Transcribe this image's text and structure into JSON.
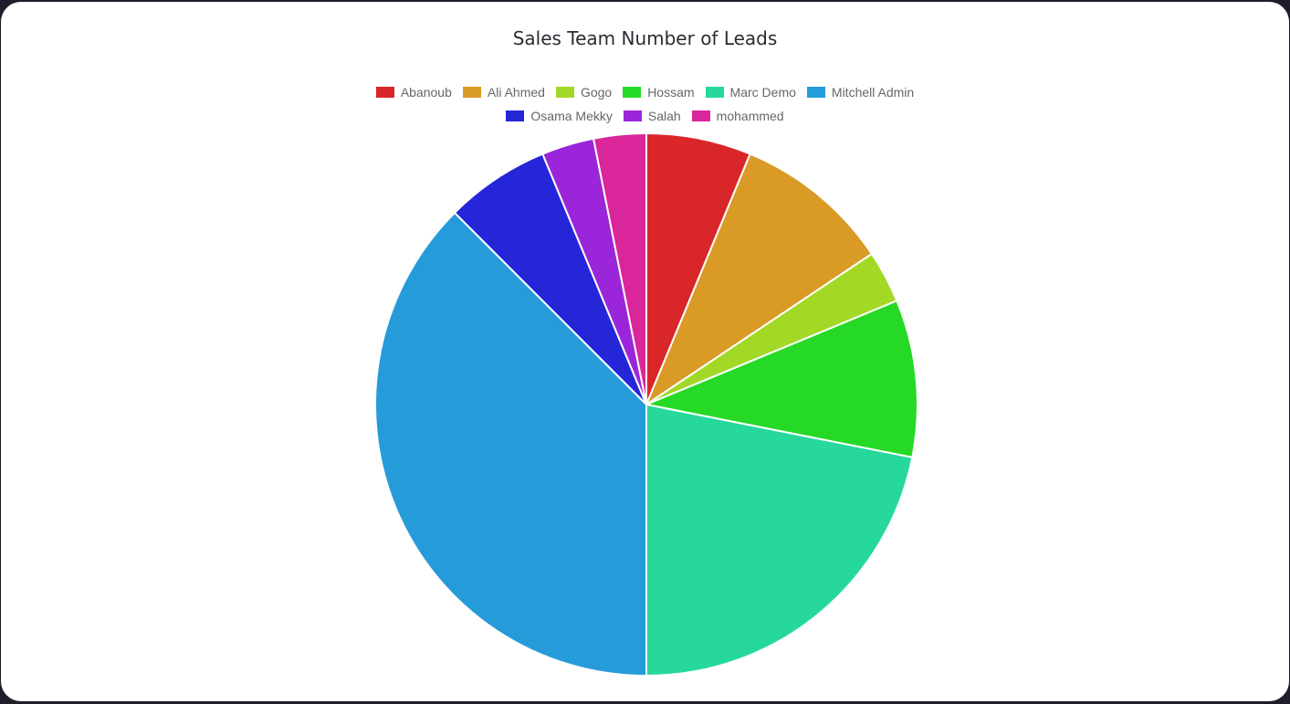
{
  "chart_data": {
    "type": "pie",
    "title": "Sales Team Number of Leads",
    "legend_position": "top",
    "categories": [
      "Abanoub",
      "Ali Ahmed",
      "Gogo",
      "Hossam",
      "Marc Demo",
      "Mitchell Admin",
      "Osama Mekky",
      "Salah",
      "mohammed"
    ],
    "values": [
      2,
      3,
      1,
      3,
      7,
      12,
      2,
      1,
      1
    ],
    "colors": [
      "#d92628",
      "#d99b26",
      "#a2d926",
      "#26d926",
      "#26d99b",
      "#269bd9",
      "#2626d9",
      "#9b26d9",
      "#d9269b"
    ]
  }
}
